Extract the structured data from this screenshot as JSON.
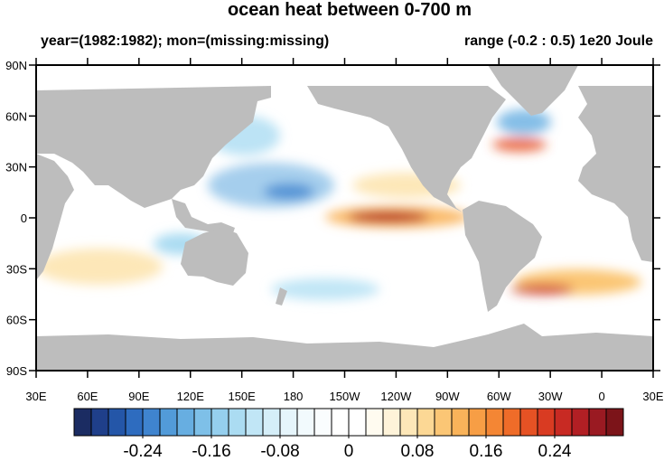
{
  "title": "ocean heat between 0-700 m",
  "subtitle_left": "year=(1982:1982); mon=(missing:missing)",
  "subtitle_right": "range (-0.2 : 0.5) 1e20 Joule",
  "map": {
    "lonlim": [
      30,
      390
    ],
    "latlim": [
      -90,
      90
    ],
    "lonticks": [
      {
        "value": 30,
        "label": "30E"
      },
      {
        "value": 60,
        "label": "60E"
      },
      {
        "value": 90,
        "label": "90E"
      },
      {
        "value": 120,
        "label": "120E"
      },
      {
        "value": 150,
        "label": "150E"
      },
      180,
      {
        "value": 210,
        "label": "150W"
      },
      {
        "value": 240,
        "label": "120W"
      },
      {
        "value": 270,
        "label": "90W"
      },
      {
        "value": 300,
        "label": "60W"
      },
      {
        "value": 330,
        "label": "30W"
      },
      {
        "value": 360,
        "label": "0"
      },
      {
        "value": 390,
        "label": "30E"
      }
    ],
    "latticks": [
      {
        "value": 90,
        "label": "90N"
      },
      {
        "value": 60,
        "label": "60N"
      },
      {
        "value": 30,
        "label": "30N"
      },
      0,
      {
        "value": -30,
        "label": "30S"
      },
      {
        "value": -60,
        "label": "60S"
      },
      {
        "value": -90,
        "label": "90S"
      }
    ]
  },
  "colorbar": {
    "lim": [
      -0.32,
      0.32
    ],
    "ticks": [
      -0.24,
      -0.16,
      -0.08,
      0,
      0.08,
      0.16,
      0.24
    ],
    "colors": [
      "#1b2c62",
      "#1f3f8a",
      "#2456a8",
      "#2e6cbf",
      "#3f84cf",
      "#529bd9",
      "#67aee1",
      "#7ec0e8",
      "#95cfee",
      "#abdcf2",
      "#c1e6f6",
      "#d5eef8",
      "#e6f5fb",
      "#f2fafd",
      "#fafdfe",
      "#ffffff",
      "#ffffff",
      "#fffbf0",
      "#fef3d9",
      "#fde7b8",
      "#fcd895",
      "#fbc675",
      "#f9b35a",
      "#f79e45",
      "#f48634",
      "#ef6c29",
      "#e65224",
      "#d93b22",
      "#c82a23",
      "#b21f24",
      "#9a1a22",
      "#7c1419"
    ]
  }
}
